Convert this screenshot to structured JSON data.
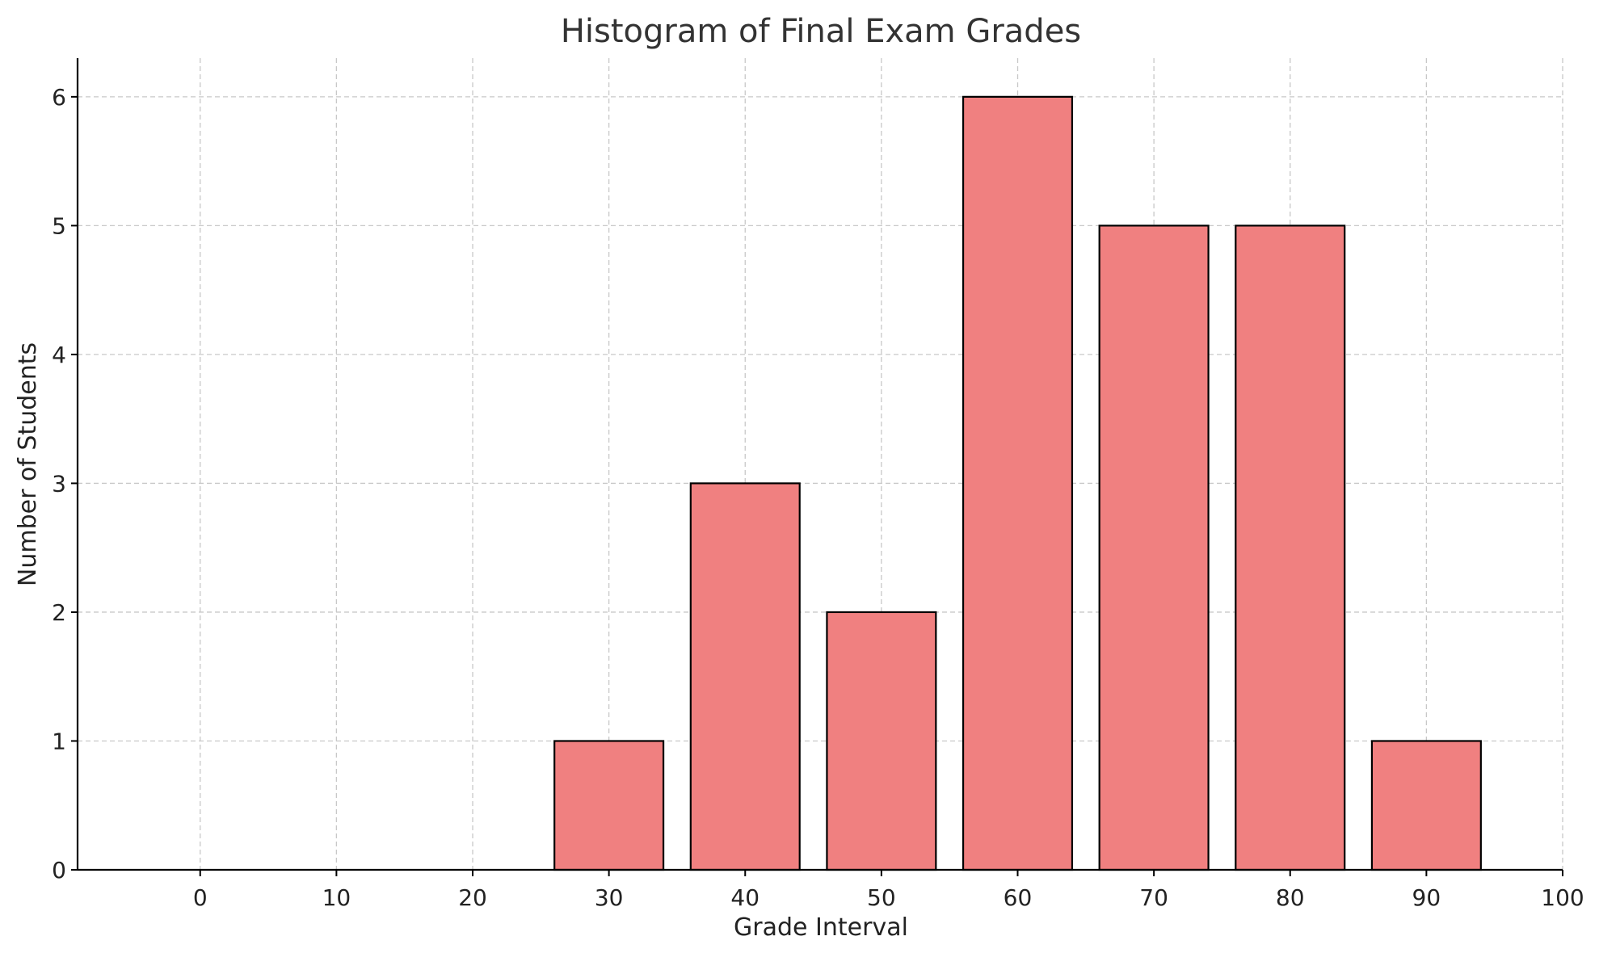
{
  "chart_data": {
    "type": "bar",
    "title": "Histogram of Final Exam Grades",
    "xlabel": "Grade Interval",
    "ylabel": "Number of Students",
    "categories": [
      0,
      10,
      20,
      30,
      40,
      50,
      60,
      70,
      80,
      90
    ],
    "values": [
      0,
      0,
      0,
      1,
      3,
      2,
      6,
      5,
      5,
      1
    ],
    "bar_width": 8,
    "xlim": [
      -9,
      100
    ],
    "ylim": [
      0,
      6.3
    ],
    "xticks": [
      0,
      10,
      20,
      30,
      40,
      50,
      60,
      70,
      80,
      90,
      100
    ],
    "yticks": [
      0,
      1,
      2,
      3,
      4,
      5,
      6
    ],
    "grid": true,
    "bar_color": "#f08080",
    "edge_color": "#000000"
  }
}
